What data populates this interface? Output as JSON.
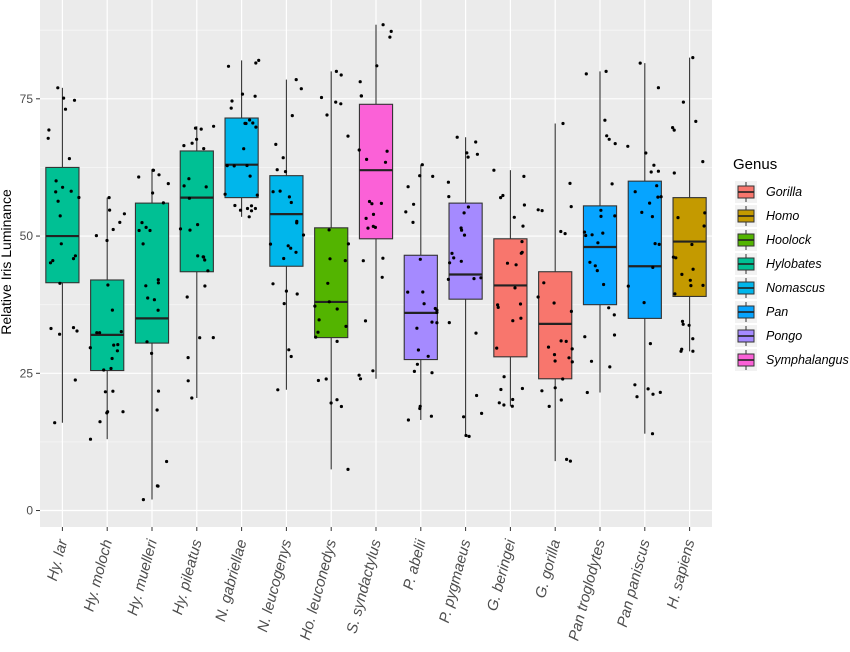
{
  "chart_data": {
    "type": "box",
    "ylabel": "Relative Iris Luminance",
    "xlabel": "",
    "ylim": [
      -3,
      93
    ],
    "yticks": [
      0,
      25,
      50,
      75
    ],
    "grid": true,
    "legend_placement": "right",
    "legend": {
      "title": "Genus",
      "entries": [
        {
          "name": "Gorilla",
          "color": "#F8766D"
        },
        {
          "name": "Homo",
          "color": "#C49A00"
        },
        {
          "name": "Hoolock",
          "color": "#53B400"
        },
        {
          "name": "Hylobates",
          "color": "#00C094"
        },
        {
          "name": "Nomascus",
          "color": "#00B6EB"
        },
        {
          "name": "Pan",
          "color": "#06A4FF"
        },
        {
          "name": "Pongo",
          "color": "#A58AFF"
        },
        {
          "name": "Symphalangus",
          "color": "#FB61D7"
        }
      ]
    },
    "categories": [
      "Hy. lar",
      "Hy. moloch",
      "Hy. muelleri",
      "Hy. pileatus",
      "N. gabriellae",
      "N. leucogenys",
      "Ho. leuconedys",
      "S. syndactylus",
      "P. abelii",
      "P. pygmaeus",
      "G. beringei",
      "G. gorilla",
      "Pan troglodytes",
      "Pan paniscus",
      "H. sapiens"
    ],
    "boxes": [
      {
        "genus": "Hylobates",
        "min": 16,
        "q1": 41.5,
        "median": 50,
        "q3": 62.5,
        "max": 77
      },
      {
        "genus": "Hylobates",
        "min": 13,
        "q1": 25.5,
        "median": 32,
        "q3": 42,
        "max": 57
      },
      {
        "genus": "Hylobates",
        "min": 2,
        "q1": 30.5,
        "median": 35,
        "q3": 56,
        "max": 62
      },
      {
        "genus": "Hylobates",
        "min": 20.5,
        "q1": 43.5,
        "median": 57,
        "q3": 65.5,
        "max": 70
      },
      {
        "genus": "Nomascus",
        "min": 53.5,
        "q1": 57,
        "median": 63,
        "q3": 71.5,
        "max": 82
      },
      {
        "genus": "Nomascus",
        "min": 22,
        "q1": 44.5,
        "median": 54,
        "q3": 61,
        "max": 78.5
      },
      {
        "genus": "Hoolock",
        "min": 7.5,
        "q1": 31.5,
        "median": 38,
        "q3": 51.5,
        "max": 80
      },
      {
        "genus": "Symphalangus",
        "min": 24,
        "q1": 49.5,
        "median": 62,
        "q3": 74,
        "max": 88.5
      },
      {
        "genus": "Pongo",
        "min": 16.5,
        "q1": 27.5,
        "median": 36,
        "q3": 46.5,
        "max": 63
      },
      {
        "genus": "Pongo",
        "min": 13.5,
        "q1": 38.5,
        "median": 43,
        "q3": 56,
        "max": 68
      },
      {
        "genus": "Gorilla",
        "min": 19,
        "q1": 28,
        "median": 41,
        "q3": 49.5,
        "max": 62
      },
      {
        "genus": "Gorilla",
        "min": 9,
        "q1": 24,
        "median": 34,
        "q3": 43.5,
        "max": 70.5
      },
      {
        "genus": "Pan",
        "min": 21.5,
        "q1": 37.5,
        "median": 48,
        "q3": 55.5,
        "max": 80
      },
      {
        "genus": "Pan",
        "min": 14,
        "q1": 35,
        "median": 44.5,
        "q3": 60,
        "max": 81.5
      },
      {
        "genus": "Homo",
        "min": 29,
        "q1": 39,
        "median": 49,
        "q3": 57,
        "max": 82.5
      }
    ]
  }
}
